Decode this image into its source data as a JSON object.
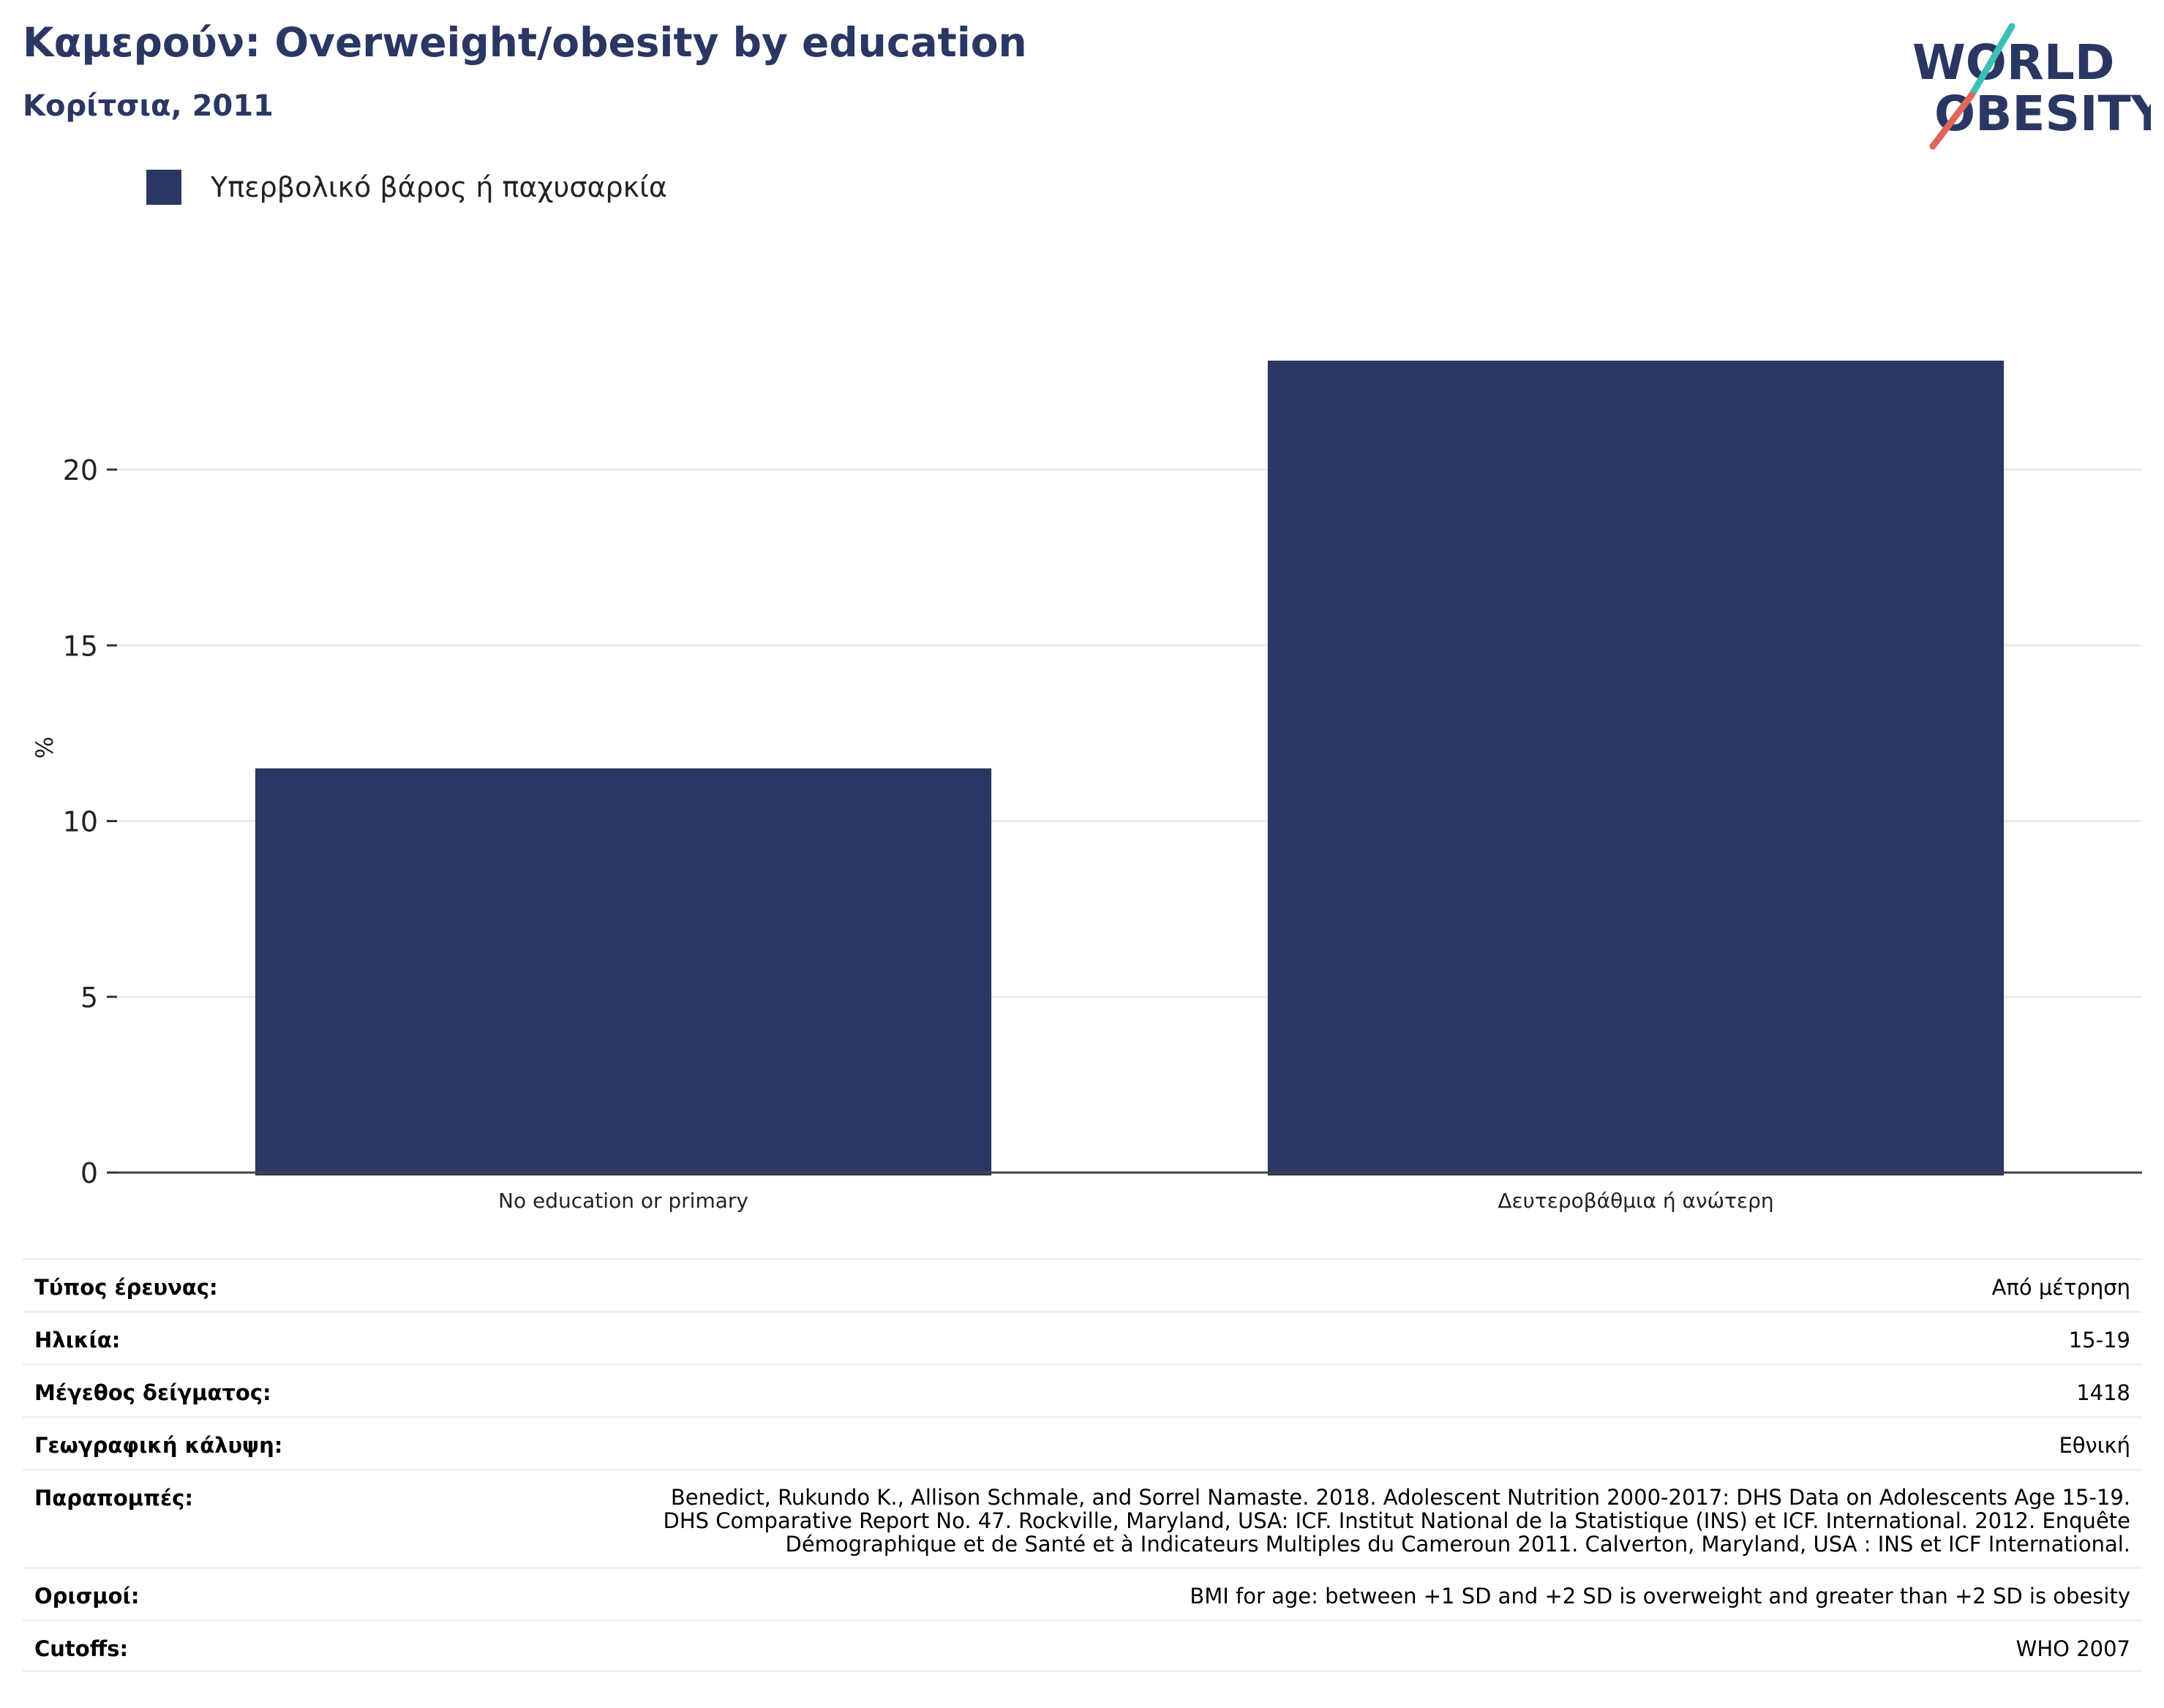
{
  "header": {
    "title": "Καμερούν: Overweight/obesity by education",
    "subtitle": "Κορίτσια, 2011"
  },
  "logo": {
    "line1": "WORLD",
    "line2": "OBESITY"
  },
  "legend": {
    "label": "Υπερβολικό βάρος ή παχυσαρκία",
    "color": "#2a3763"
  },
  "chart_data": {
    "type": "bar",
    "categories": [
      "No education or primary",
      "Δευτεροβάθμια ή ανώτερη"
    ],
    "series": [
      {
        "name": "Υπερβολικό βάρος ή παχυσαρκία",
        "values": [
          11.5,
          23.1
        ],
        "color": "#2a3763"
      }
    ],
    "ylabel": "%",
    "xlabel": "",
    "ylim": [
      0,
      25
    ],
    "yticks": [
      0,
      5,
      10,
      15,
      20
    ],
    "grid": true,
    "legend_position": "top-left"
  },
  "meta": [
    {
      "label": "Τύπος έρευνας:",
      "value": "Από μέτρηση"
    },
    {
      "label": "Ηλικία:",
      "value": "15-19"
    },
    {
      "label": "Μέγεθος δείγματος:",
      "value": "1418"
    },
    {
      "label": "Γεωγραφική κάλυψη:",
      "value": "Εθνική"
    },
    {
      "label": "Παραπομπές:",
      "value": "Benedict, Rukundo K., Allison Schmale, and Sorrel Namaste. 2018. Adolescent Nutrition 2000-2017: DHS Data on Adolescents Age 15-19.\nDHS Comparative Report No. 47. Rockville, Maryland, USA: ICF. Institut National de la Statistique (INS) et ICF. International. 2012. Enquête\nDémographique et de Santé et à Indicateurs Multiples du Cameroun 2011. Calverton, Maryland, USA : INS et ICF International."
    },
    {
      "label": "Ορισμοί:",
      "value": "BMI for age: between +1 SD and +2 SD is overweight and greater than +2 SD is obesity"
    },
    {
      "label": "Cutoffs:",
      "value": "WHO 2007"
    }
  ]
}
